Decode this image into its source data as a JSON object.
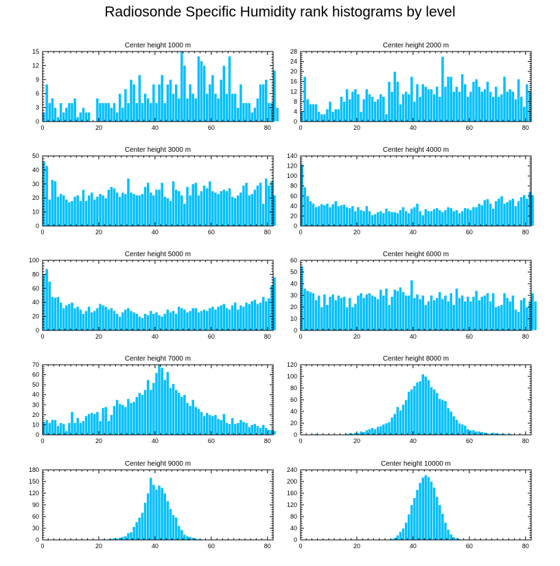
{
  "title": "Radiosonde Specific Humidity rank histograms by level",
  "colors": {
    "bar": "#00bfff",
    "bar_edge": "#ffffff",
    "axis": "#000000"
  },
  "chart_data": [
    {
      "type": "bar",
      "title": "Center height 1000 m",
      "x_ticks": [
        "0",
        "20",
        "40",
        "60",
        "80"
      ],
      "y_ticks": [
        "0",
        "3",
        "6",
        "9",
        "12",
        "15"
      ],
      "xlim": [
        0,
        82
      ],
      "ylim": [
        0,
        15
      ],
      "values": [
        2,
        8,
        4,
        5,
        3,
        1,
        4,
        2,
        3,
        4,
        4,
        5,
        1,
        2,
        3,
        2,
        2,
        0,
        0,
        5,
        4,
        4,
        4,
        4,
        3,
        4,
        2,
        6,
        3,
        7,
        4,
        9,
        8,
        4,
        10,
        4,
        6,
        5,
        4,
        8,
        4,
        8,
        10,
        4,
        8,
        9,
        6,
        8,
        5,
        15,
        12,
        5,
        8,
        6,
        5,
        14,
        13,
        12,
        6,
        8,
        10,
        6,
        5,
        9,
        12,
        6,
        14,
        6,
        6,
        3,
        8,
        4,
        4,
        4,
        2,
        3,
        5,
        8,
        8,
        9,
        4,
        4,
        11,
        3
      ]
    },
    {
      "type": "bar",
      "title": "Center height 2000 m",
      "x_ticks": [
        "0",
        "20",
        "40",
        "60",
        "80"
      ],
      "y_ticks": [
        "0",
        "4",
        "8",
        "12",
        "16",
        "20",
        "24",
        "28"
      ],
      "xlim": [
        0,
        82
      ],
      "ylim": [
        0,
        28
      ],
      "values": [
        4,
        18,
        9,
        7,
        7,
        7,
        4,
        3,
        3,
        5,
        8,
        4,
        5,
        5,
        10,
        8,
        13,
        9,
        12,
        13,
        11,
        4,
        9,
        13,
        11,
        10,
        8,
        9,
        11,
        10,
        3,
        16,
        12,
        20,
        16,
        7,
        11,
        12,
        11,
        18,
        8,
        15,
        10,
        15,
        14,
        13,
        13,
        11,
        14,
        10,
        26,
        14,
        18,
        18,
        12,
        14,
        12,
        19,
        15,
        10,
        12,
        16,
        17,
        14,
        12,
        13,
        16,
        12,
        10,
        14,
        10,
        11,
        18,
        12,
        13,
        12,
        9,
        17,
        10,
        6,
        15,
        12
      ]
    },
    {
      "type": "bar",
      "title": "Center height 3000 m",
      "x_ticks": [
        "0",
        "20",
        "40",
        "60",
        "80"
      ],
      "y_ticks": [
        "0",
        "10",
        "20",
        "30",
        "40",
        "50"
      ],
      "xlim": [
        0,
        82
      ],
      "ylim": [
        0,
        50
      ],
      "values": [
        46,
        43,
        19,
        33,
        32,
        21,
        23,
        22,
        19,
        17,
        18,
        21,
        22,
        18,
        26,
        18,
        22,
        24,
        19,
        21,
        23,
        22,
        20,
        26,
        28,
        27,
        24,
        21,
        24,
        23,
        34,
        24,
        23,
        22,
        22,
        23,
        28,
        31,
        24,
        22,
        26,
        26,
        31,
        21,
        20,
        18,
        32,
        26,
        25,
        22,
        16,
        28,
        22,
        30,
        31,
        22,
        25,
        29,
        27,
        32,
        25,
        24,
        23,
        25,
        26,
        25,
        27,
        21,
        20,
        22,
        24,
        29,
        31,
        22,
        23,
        26,
        29,
        31,
        16,
        34,
        29,
        32,
        22
      ]
    },
    {
      "type": "bar",
      "title": "Center height 4000 m",
      "x_ticks": [
        "0",
        "20",
        "40",
        "60",
        "80"
      ],
      "y_ticks": [
        "0",
        "20",
        "40",
        "60",
        "80",
        "100",
        "120",
        "140"
      ],
      "xlim": [
        0,
        82
      ],
      "ylim": [
        0,
        140
      ],
      "values": [
        123,
        78,
        60,
        50,
        45,
        38,
        40,
        44,
        42,
        45,
        38,
        44,
        50,
        40,
        42,
        43,
        38,
        36,
        40,
        30,
        38,
        32,
        30,
        40,
        30,
        22,
        24,
        28,
        30,
        26,
        35,
        30,
        28,
        28,
        26,
        32,
        38,
        30,
        26,
        35,
        38,
        45,
        30,
        22,
        34,
        30,
        30,
        34,
        36,
        32,
        28,
        32,
        38,
        36,
        30,
        32,
        26,
        30,
        36,
        35,
        32,
        38,
        38,
        45,
        42,
        52,
        54,
        45,
        35,
        50,
        55,
        60,
        45,
        48,
        52,
        55,
        40,
        50,
        58,
        62,
        55,
        68,
        62
      ]
    },
    {
      "type": "bar",
      "title": "Center height 5000 m",
      "x_ticks": [
        "0",
        "20",
        "40",
        "60",
        "80"
      ],
      "y_ticks": [
        "0",
        "20",
        "40",
        "60",
        "80",
        "100"
      ],
      "xlim": [
        0,
        82
      ],
      "ylim": [
        0,
        100
      ],
      "values": [
        80,
        88,
        70,
        48,
        47,
        48,
        40,
        32,
        36,
        38,
        40,
        32,
        34,
        30,
        24,
        28,
        34,
        26,
        28,
        32,
        38,
        36,
        34,
        30,
        32,
        28,
        24,
        20,
        26,
        30,
        32,
        28,
        26,
        24,
        20,
        18,
        24,
        22,
        28,
        24,
        26,
        22,
        20,
        24,
        30,
        26,
        28,
        24,
        34,
        32,
        30,
        26,
        28,
        32,
        32,
        26,
        28,
        30,
        28,
        32,
        34,
        30,
        34,
        36,
        38,
        32,
        30,
        36,
        40,
        30,
        36,
        34,
        40,
        38,
        42,
        44,
        38,
        40,
        48,
        42,
        46,
        64,
        76
      ]
    },
    {
      "type": "bar",
      "title": "Center height 6000 m",
      "x_ticks": [
        "0",
        "20",
        "40",
        "60",
        "80"
      ],
      "y_ticks": [
        "0",
        "10",
        "20",
        "30",
        "40",
        "50",
        "60"
      ],
      "xlim": [
        0,
        82
      ],
      "ylim": [
        0,
        60
      ],
      "values": [
        55,
        36,
        34,
        33,
        32,
        26,
        30,
        20,
        31,
        22,
        29,
        31,
        26,
        30,
        28,
        29,
        20,
        28,
        20,
        23,
        30,
        32,
        28,
        31,
        32,
        30,
        29,
        27,
        35,
        30,
        36,
        22,
        29,
        35,
        34,
        37,
        33,
        30,
        30,
        43,
        28,
        31,
        27,
        30,
        22,
        25,
        30,
        26,
        28,
        33,
        27,
        30,
        25,
        32,
        22,
        36,
        28,
        30,
        25,
        29,
        25,
        29,
        34,
        26,
        29,
        30,
        32,
        25,
        32,
        20,
        21,
        22,
        32,
        28,
        25,
        30,
        18,
        16,
        26,
        28,
        20,
        25,
        32,
        25
      ]
    },
    {
      "type": "bar",
      "title": "Center height 7000 m",
      "x_ticks": [
        "0",
        "20",
        "40",
        "60",
        "80"
      ],
      "y_ticks": [
        "0",
        "10",
        "20",
        "30",
        "40",
        "50",
        "60",
        "70"
      ],
      "xlim": [
        0,
        82
      ],
      "ylim": [
        0,
        70
      ],
      "values": [
        13,
        15,
        12,
        15,
        15,
        9,
        12,
        11,
        4,
        12,
        23,
        12,
        17,
        12,
        14,
        19,
        21,
        22,
        21,
        23,
        14,
        27,
        28,
        14,
        20,
        29,
        35,
        31,
        30,
        28,
        36,
        32,
        33,
        38,
        42,
        40,
        45,
        55,
        45,
        52,
        62,
        70,
        67,
        55,
        63,
        47,
        51,
        45,
        42,
        38,
        40,
        32,
        29,
        35,
        28,
        26,
        23,
        19,
        22,
        20,
        19,
        20,
        16,
        15,
        21,
        12,
        11,
        17,
        11,
        12,
        15,
        13,
        12,
        8,
        10,
        11,
        9,
        7,
        10,
        7,
        5,
        5,
        4
      ]
    },
    {
      "type": "bar",
      "title": "Center height 8000 m",
      "x_ticks": [
        "0",
        "20",
        "40",
        "60",
        "80"
      ],
      "y_ticks": [
        "0",
        "20",
        "40",
        "60",
        "80",
        "100",
        "120"
      ],
      "xlim": [
        0,
        82
      ],
      "ylim": [
        0,
        120
      ],
      "values": [
        0,
        0,
        0,
        0,
        0,
        2,
        0,
        0,
        0,
        1,
        0,
        0,
        1,
        0,
        1,
        1,
        2,
        3,
        2,
        4,
        3,
        6,
        5,
        8,
        10,
        12,
        10,
        14,
        15,
        18,
        20,
        22,
        30,
        36,
        48,
        42,
        52,
        60,
        74,
        78,
        84,
        90,
        92,
        104,
        100,
        94,
        82,
        78,
        72,
        62,
        60,
        58,
        46,
        40,
        32,
        26,
        20,
        18,
        16,
        10,
        8,
        8,
        6,
        6,
        5,
        4,
        3,
        2,
        4,
        3,
        2,
        2,
        2,
        1,
        2,
        1,
        1,
        1,
        0,
        1,
        0,
        0,
        0
      ]
    },
    {
      "type": "bar",
      "title": "Center height 9000 m",
      "x_ticks": [
        "0",
        "20",
        "40",
        "60",
        "80"
      ],
      "y_ticks": [
        "0",
        "30",
        "60",
        "90",
        "120",
        "150",
        "180"
      ],
      "xlim": [
        0,
        82
      ],
      "ylim": [
        0,
        180
      ],
      "values": [
        0,
        0,
        0,
        0,
        0,
        0,
        0,
        0,
        0,
        0,
        1,
        0,
        0,
        0,
        0,
        0,
        0,
        0,
        0,
        0,
        1,
        2,
        1,
        2,
        3,
        5,
        4,
        6,
        8,
        10,
        18,
        20,
        34,
        46,
        58,
        70,
        96,
        120,
        160,
        142,
        130,
        140,
        134,
        120,
        100,
        80,
        64,
        58,
        36,
        26,
        14,
        10,
        8,
        6,
        4,
        2,
        2,
        1,
        1,
        0,
        0,
        0,
        0,
        0,
        0,
        0,
        0,
        0,
        0,
        0,
        0,
        0,
        0,
        0,
        0,
        0,
        0,
        0,
        0,
        0,
        0,
        0
      ]
    },
    {
      "type": "bar",
      "title": "Center height 10000 m",
      "x_ticks": [
        "0",
        "20",
        "40",
        "60",
        "80"
      ],
      "y_ticks": [
        "0",
        "40",
        "80",
        "120",
        "160",
        "200",
        "240"
      ],
      "xlim": [
        0,
        82
      ],
      "ylim": [
        0,
        240
      ],
      "values": [
        0,
        0,
        0,
        0,
        0,
        0,
        0,
        0,
        0,
        0,
        0,
        0,
        0,
        0,
        0,
        0,
        0,
        0,
        0,
        0,
        0,
        0,
        0,
        0,
        0,
        0,
        0,
        0,
        0,
        0,
        0,
        2,
        4,
        8,
        16,
        28,
        40,
        60,
        88,
        120,
        144,
        172,
        196,
        214,
        222,
        216,
        200,
        180,
        148,
        120,
        90,
        60,
        36,
        20,
        10,
        6,
        4,
        2,
        2,
        1,
        1,
        0,
        0,
        0,
        0,
        0,
        0,
        0,
        0,
        0,
        0,
        0,
        0,
        0,
        0,
        0,
        0,
        0,
        0,
        0,
        0,
        0,
        0
      ]
    }
  ]
}
